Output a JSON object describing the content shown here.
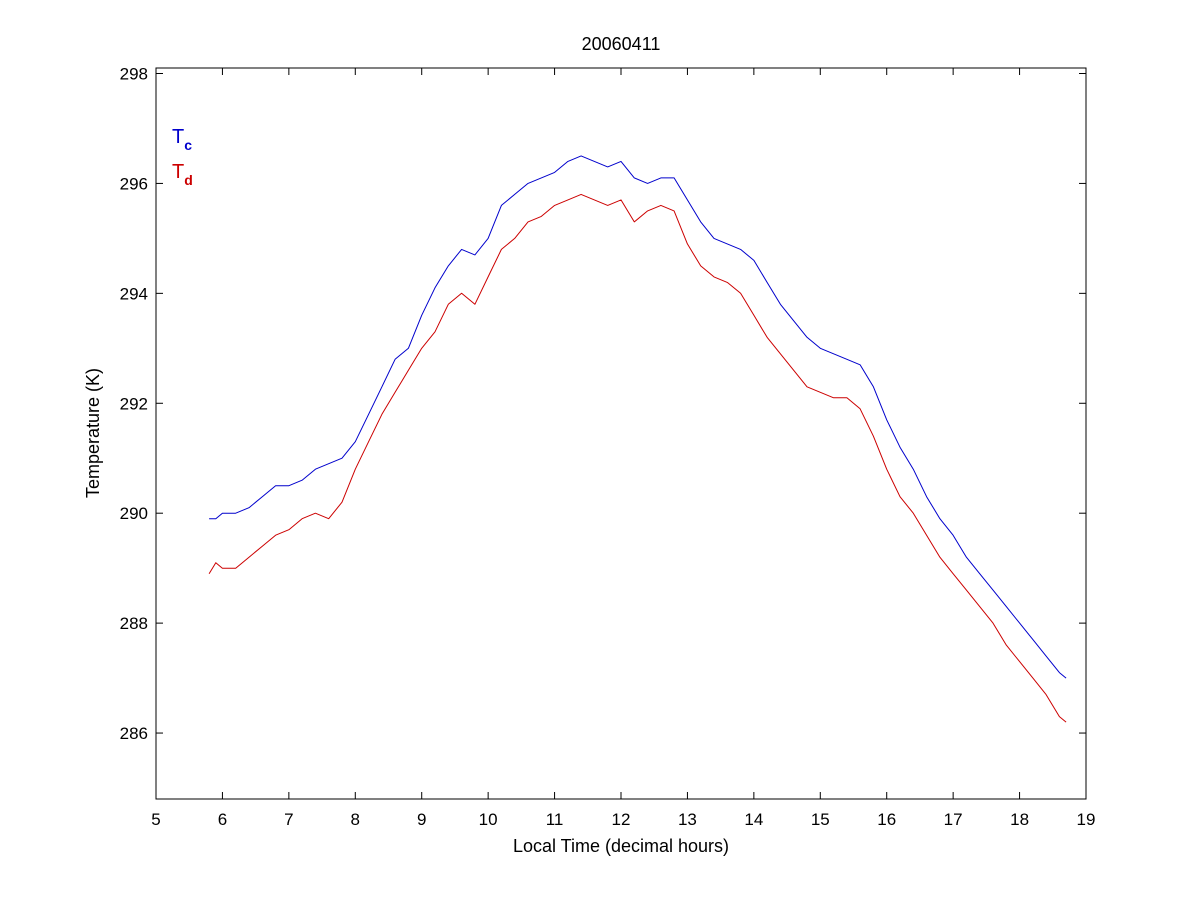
{
  "chart_data": {
    "type": "line",
    "title": "20060411",
    "xlabel": "Local Time (decimal hours)",
    "ylabel": "Temperature (K)",
    "xlim": [
      5,
      19
    ],
    "ylim": [
      284.8,
      298.1
    ],
    "xticks": [
      5,
      6,
      7,
      8,
      9,
      10,
      11,
      12,
      13,
      14,
      15,
      16,
      17,
      18,
      19
    ],
    "yticks": [
      286,
      288,
      290,
      292,
      294,
      296,
      298
    ],
    "grid": false,
    "legend": {
      "placement": "top-left",
      "entries": [
        {
          "main": "T",
          "sub": "c",
          "color": "#0000cc"
        },
        {
          "main": "T",
          "sub": "d",
          "color": "#cc0000"
        }
      ]
    },
    "series": [
      {
        "color": "#0000cc",
        "x": [
          5.8,
          5.9,
          6.0,
          6.2,
          6.4,
          6.6,
          6.8,
          7.0,
          7.2,
          7.4,
          7.6,
          7.8,
          8.0,
          8.2,
          8.4,
          8.6,
          8.8,
          9.0,
          9.2,
          9.4,
          9.6,
          9.8,
          10.0,
          10.2,
          10.4,
          10.6,
          10.8,
          11.0,
          11.2,
          11.4,
          11.6,
          11.8,
          12.0,
          12.2,
          12.4,
          12.6,
          12.8,
          13.0,
          13.2,
          13.4,
          13.6,
          13.8,
          14.0,
          14.2,
          14.4,
          14.6,
          14.8,
          15.0,
          15.2,
          15.4,
          15.6,
          15.8,
          16.0,
          16.2,
          16.4,
          16.6,
          16.8,
          17.0,
          17.2,
          17.4,
          17.6,
          17.8,
          18.0,
          18.2,
          18.4,
          18.6,
          18.7
        ],
        "y": [
          289.9,
          289.9,
          290.0,
          290.0,
          290.1,
          290.3,
          290.5,
          290.5,
          290.6,
          290.8,
          290.9,
          291.0,
          291.3,
          291.8,
          292.3,
          292.8,
          293.0,
          293.6,
          294.1,
          294.5,
          294.8,
          294.7,
          295.0,
          295.6,
          295.8,
          296.0,
          296.1,
          296.2,
          296.4,
          296.5,
          296.4,
          296.3,
          296.4,
          296.1,
          296.0,
          296.1,
          296.1,
          295.7,
          295.3,
          295.0,
          294.9,
          294.8,
          294.6,
          294.2,
          293.8,
          293.5,
          293.2,
          293.0,
          292.9,
          292.8,
          292.7,
          292.3,
          291.7,
          291.2,
          290.8,
          290.3,
          289.9,
          289.6,
          289.2,
          288.9,
          288.6,
          288.3,
          288.0,
          287.7,
          287.4,
          287.1,
          287.0
        ]
      },
      {
        "color": "#cc0000",
        "x": [
          5.8,
          5.9,
          6.0,
          6.2,
          6.4,
          6.6,
          6.8,
          7.0,
          7.2,
          7.4,
          7.6,
          7.8,
          8.0,
          8.2,
          8.4,
          8.6,
          8.8,
          9.0,
          9.2,
          9.4,
          9.6,
          9.8,
          10.0,
          10.2,
          10.4,
          10.6,
          10.8,
          11.0,
          11.2,
          11.4,
          11.6,
          11.8,
          12.0,
          12.2,
          12.4,
          12.6,
          12.8,
          13.0,
          13.2,
          13.4,
          13.6,
          13.8,
          14.0,
          14.2,
          14.4,
          14.6,
          14.8,
          15.0,
          15.2,
          15.4,
          15.6,
          15.8,
          16.0,
          16.2,
          16.4,
          16.6,
          16.8,
          17.0,
          17.2,
          17.4,
          17.6,
          17.8,
          18.0,
          18.2,
          18.4,
          18.6,
          18.7
        ],
        "y": [
          288.9,
          289.1,
          289.0,
          289.0,
          289.2,
          289.4,
          289.6,
          289.7,
          289.9,
          290.0,
          289.9,
          290.2,
          290.8,
          291.3,
          291.8,
          292.2,
          292.6,
          293.0,
          293.3,
          293.8,
          294.0,
          293.8,
          294.3,
          294.8,
          295.0,
          295.3,
          295.4,
          295.6,
          295.7,
          295.8,
          295.7,
          295.6,
          295.7,
          295.3,
          295.5,
          295.6,
          295.5,
          294.9,
          294.5,
          294.3,
          294.2,
          294.0,
          293.6,
          293.2,
          292.9,
          292.6,
          292.3,
          292.2,
          292.1,
          292.1,
          291.9,
          291.4,
          290.8,
          290.3,
          290.0,
          289.6,
          289.2,
          288.9,
          288.6,
          288.3,
          288.0,
          287.6,
          287.3,
          287.0,
          286.7,
          286.3,
          286.2
        ]
      }
    ]
  }
}
